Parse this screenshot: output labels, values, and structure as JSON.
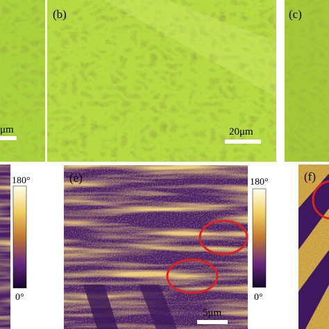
{
  "panels": {
    "a": {
      "scale_bar": "μm"
    },
    "b": {
      "label": "(b)",
      "scale_bar": "20μm"
    },
    "c": {
      "label": "(c)"
    },
    "e": {
      "label": "(e)",
      "scale_bar": "5μm"
    },
    "f": {
      "label": "(f)"
    }
  },
  "colorbars": [
    {
      "max": "180°",
      "min": "0°"
    },
    {
      "max": "180°",
      "min": "0°"
    }
  ]
}
